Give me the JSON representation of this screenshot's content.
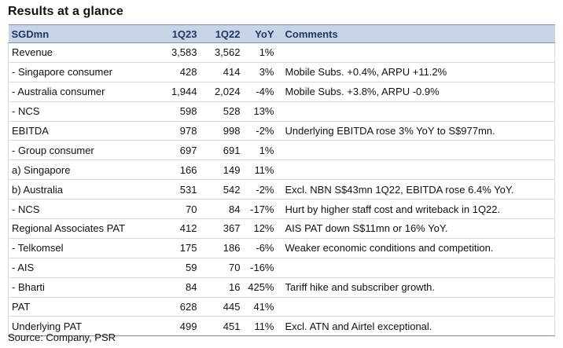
{
  "title": "Results at a glance",
  "headers": {
    "label": "SGDmn",
    "q1": "1Q23",
    "q2": "1Q22",
    "yoy": "YoY",
    "comments": "Comments"
  },
  "rows": [
    {
      "label": "Revenue",
      "q1": "3,583",
      "q2": "3,562",
      "yoy": "1%",
      "comment": ""
    },
    {
      "label": " - Singapore consumer",
      "q1": "428",
      "q2": "414",
      "yoy": "3%",
      "comment": "Mobile Subs. +0.4%, ARPU +11.2%"
    },
    {
      "label": " - Australia consumer",
      "q1": "1,944",
      "q2": "2,024",
      "yoy": "-4%",
      "comment": "Mobile Subs. +3.8%, ARPU -0.9%"
    },
    {
      "label": " - NCS",
      "q1": "598",
      "q2": "528",
      "yoy": "13%",
      "comment": ""
    },
    {
      "label": "EBITDA",
      "q1": "978",
      "q2": "998",
      "yoy": "-2%",
      "comment": "Underlying EBITDA rose 3% YoY to S$977mn."
    },
    {
      "label": " - Group consumer",
      "q1": "697",
      "q2": "691",
      "yoy": "1%",
      "comment": ""
    },
    {
      "label": "a) Singapore",
      "q1": "166",
      "q2": "149",
      "yoy": "11%",
      "comment": ""
    },
    {
      "label": "b) Australia",
      "q1": "531",
      "q2": "542",
      "yoy": "-2%",
      "comment": "Excl. NBN S$43mn 1Q22, EBITDA rose  6.4% YoY."
    },
    {
      "label": " - NCS",
      "q1": "70",
      "q2": "84",
      "yoy": "-17%",
      "comment": "Hurt by higher staff cost and writeback in 1Q22."
    },
    {
      "label": "Regional Associates PAT",
      "q1": "412",
      "q2": "367",
      "yoy": "12%",
      "comment": "AIS PAT down S$11mn or 16% YoY."
    },
    {
      "label": " - Telkomsel",
      "q1": "175",
      "q2": "186",
      "yoy": "-6%",
      "comment": "Weaker economic conditions and competition."
    },
    {
      "label": " - AIS",
      "q1": "59",
      "q2": "70",
      "yoy": "-16%",
      "comment": ""
    },
    {
      "label": " - Bharti",
      "q1": "84",
      "q2": "16",
      "yoy": "425%",
      "comment": "Tariff hike and subscriber growth."
    },
    {
      "label": "PAT",
      "q1": "628",
      "q2": "445",
      "yoy": "41%",
      "comment": ""
    },
    {
      "label": "Underlying PAT",
      "q1": "499",
      "q2": "451",
      "yoy": "11%",
      "comment": "Excl. ATN and Airtel exceptional."
    }
  ],
  "source": "Source: Company, PSR"
}
